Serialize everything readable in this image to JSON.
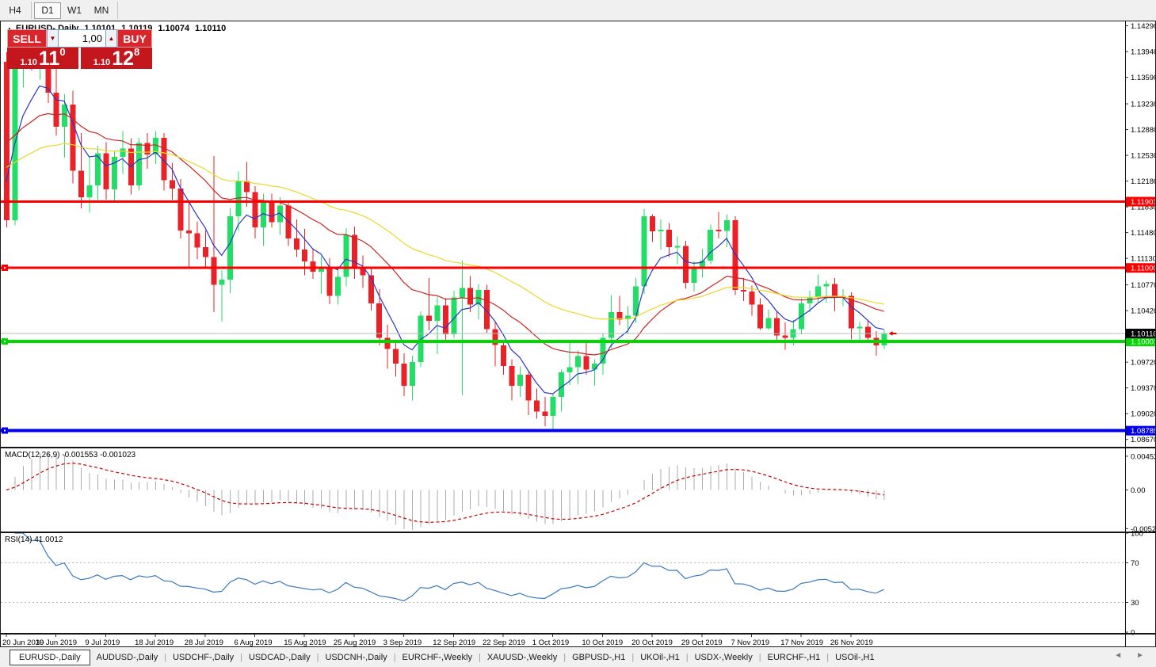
{
  "toolbar": {
    "timeframes": [
      "H4",
      "D1",
      "W1",
      "MN"
    ],
    "active": "D1"
  },
  "chart": {
    "collapse_icon": "▲",
    "title": "EURUSD-,Daily"
  },
  "trade_panel": {
    "sell_label": "SELL",
    "buy_label": "BUY",
    "volume": "1,00",
    "spinner_down": "▼",
    "spinner_up": "▲",
    "sell": {
      "prefix": "1.10",
      "main": "11",
      "sup": "0"
    },
    "buy": {
      "prefix": "1.10",
      "main": "12",
      "sup": "8"
    }
  },
  "tabbar": {
    "active": "EURUSD-,Daily",
    "items": [
      "EURUSD-,Daily",
      "AUDUSD-,Daily",
      "USDCHF-,Daily",
      "USDCAD-,Daily",
      "USDCNH-,Daily",
      "EURCHF-,Weekly",
      "XAUUSD-,Weekly",
      "GBPUSD-,H1",
      "UKOil-,H1",
      "USDX-,Weekly",
      "EURCHF-,H1",
      "USOil-,H1"
    ],
    "scroll_left": "◄",
    "scroll_right": "►"
  },
  "chart_data": {
    "type": "candlestick",
    "symbol": "EURUSD-",
    "period": "Daily",
    "ohlc_display": {
      "open": "1.10101",
      "high": "1.10119",
      "low": "1.10074",
      "close": "1.10110"
    },
    "price_min": 1.0857,
    "price_max": 1.1435,
    "colors": {
      "bull": "#22dd66",
      "bear": "#ea2126",
      "ma_fast": "#2a35c8",
      "ma_mid": "#cc2424",
      "ma_slow": "#ecd827",
      "macd_hist": "#ababab",
      "macd_signal": "#c40000",
      "rsi": "#3a78c0",
      "line_red": "#fd0000",
      "line_green": "#00d800",
      "line_blue": "#0000ee",
      "line_bid": "#b8b8b8"
    },
    "candles": [
      [
        1.138,
        1.1393,
        1.1155,
        1.1165
      ],
      [
        1.1165,
        1.1395,
        1.1158,
        1.1385
      ],
      [
        1.1385,
        1.1406,
        1.1345,
        1.1397
      ],
      [
        1.1397,
        1.1412,
        1.1368,
        1.1378
      ],
      [
        1.1378,
        1.1401,
        1.1356,
        1.1392
      ],
      [
        1.1392,
        1.1402,
        1.1324,
        1.1338
      ],
      [
        1.1338,
        1.1371,
        1.128,
        1.1292
      ],
      [
        1.1292,
        1.1336,
        1.125,
        1.1322
      ],
      [
        1.1322,
        1.1341,
        1.1215,
        1.1232
      ],
      [
        1.1232,
        1.1283,
        1.1181,
        1.1196
      ],
      [
        1.1196,
        1.1251,
        1.1175,
        1.1212
      ],
      [
        1.1212,
        1.1266,
        1.119,
        1.1256
      ],
      [
        1.1256,
        1.1271,
        1.1193,
        1.1207
      ],
      [
        1.1207,
        1.1259,
        1.1192,
        1.1251
      ],
      [
        1.1251,
        1.1286,
        1.1228,
        1.1262
      ],
      [
        1.1262,
        1.1276,
        1.12,
        1.1212
      ],
      [
        1.1212,
        1.1277,
        1.1205,
        1.127
      ],
      [
        1.127,
        1.1283,
        1.1235,
        1.1254
      ],
      [
        1.1254,
        1.1286,
        1.1241,
        1.1277
      ],
      [
        1.1277,
        1.1283,
        1.1205,
        1.1219
      ],
      [
        1.1219,
        1.1243,
        1.1193,
        1.1208
      ],
      [
        1.1208,
        1.1221,
        1.114,
        1.1151
      ],
      [
        1.1151,
        1.1189,
        1.1101,
        1.1147
      ],
      [
        1.1147,
        1.1163,
        1.1112,
        1.1128
      ],
      [
        1.1128,
        1.1151,
        1.1102,
        1.1115
      ],
      [
        1.1115,
        1.1252,
        1.104,
        1.1077
      ],
      [
        1.1077,
        1.1097,
        1.1027,
        1.1084
      ],
      [
        1.1084,
        1.1181,
        1.1066,
        1.117
      ],
      [
        1.117,
        1.1231,
        1.115,
        1.1218
      ],
      [
        1.1218,
        1.1244,
        1.1183,
        1.1203
      ],
      [
        1.1203,
        1.1211,
        1.114,
        1.1155
      ],
      [
        1.1155,
        1.1201,
        1.113,
        1.119
      ],
      [
        1.119,
        1.1201,
        1.1155,
        1.1162
      ],
      [
        1.1162,
        1.1196,
        1.1145,
        1.1185
      ],
      [
        1.1185,
        1.1191,
        1.113,
        1.114
      ],
      [
        1.114,
        1.1166,
        1.1115,
        1.1125
      ],
      [
        1.1125,
        1.1153,
        1.109,
        1.1109
      ],
      [
        1.1109,
        1.1126,
        1.1085,
        1.1095
      ],
      [
        1.1095,
        1.1116,
        1.1065,
        1.1102
      ],
      [
        1.1102,
        1.1113,
        1.1051,
        1.1062
      ],
      [
        1.1062,
        1.1099,
        1.105,
        1.1088
      ],
      [
        1.1088,
        1.1154,
        1.1075,
        1.1145
      ],
      [
        1.1145,
        1.1156,
        1.1085,
        1.11
      ],
      [
        1.11,
        1.1117,
        1.1073,
        1.109
      ],
      [
        1.109,
        1.1099,
        1.1042,
        1.1052
      ],
      [
        1.1052,
        1.1071,
        1.0995,
        1.1005
      ],
      [
        1.1005,
        1.1023,
        1.0963,
        1.099
      ],
      [
        1.099,
        1.1001,
        1.0952,
        1.097
      ],
      [
        1.097,
        1.0984,
        1.0926,
        1.094
      ],
      [
        1.094,
        1.0981,
        1.092,
        1.0972
      ],
      [
        1.0972,
        1.1041,
        1.0965,
        1.1035
      ],
      [
        1.1035,
        1.1086,
        1.1015,
        1.1028
      ],
      [
        1.1028,
        1.1061,
        1.0983,
        1.1049
      ],
      [
        1.1049,
        1.1059,
        1.1,
        1.101
      ],
      [
        1.101,
        1.1069,
        1.1005,
        1.106
      ],
      [
        1.106,
        1.111,
        1.0927,
        1.1073
      ],
      [
        1.1073,
        1.1089,
        1.104,
        1.105
      ],
      [
        1.105,
        1.1078,
        1.103,
        1.107
      ],
      [
        1.107,
        1.1077,
        1.1012,
        1.1017
      ],
      [
        1.1017,
        1.1026,
        1.0966,
        1.0995
      ],
      [
        1.0995,
        1.1001,
        1.0955,
        1.0967
      ],
      [
        1.0967,
        1.0976,
        1.092,
        1.094
      ],
      [
        1.094,
        1.0966,
        1.0925,
        1.0955
      ],
      [
        1.0955,
        1.0961,
        1.09,
        1.092
      ],
      [
        1.092,
        1.0936,
        1.0895,
        1.0905
      ],
      [
        1.0905,
        1.0925,
        1.0885,
        1.0899
      ],
      [
        1.0899,
        1.093,
        1.0879,
        1.0925
      ],
      [
        1.0925,
        1.0962,
        1.0905,
        1.0958
      ],
      [
        1.0958,
        1.0999,
        1.0941,
        1.0965
      ],
      [
        1.0965,
        1.0988,
        1.0942,
        1.098
      ],
      [
        1.098,
        1.1,
        1.0955,
        1.0962
      ],
      [
        1.0962,
        1.0976,
        1.094,
        1.097
      ],
      [
        1.097,
        1.1011,
        1.0955,
        1.1005
      ],
      [
        1.1005,
        1.1063,
        1.0991,
        1.104
      ],
      [
        1.104,
        1.1062,
        1.1022,
        1.103
      ],
      [
        1.103,
        1.1048,
        1.101,
        1.1035
      ],
      [
        1.1035,
        1.1086,
        1.1025,
        1.1075
      ],
      [
        1.1075,
        1.118,
        1.1065,
        1.117
      ],
      [
        1.117,
        1.1173,
        1.1135,
        1.115
      ],
      [
        1.115,
        1.1166,
        1.1125,
        1.1152
      ],
      [
        1.1152,
        1.1161,
        1.1115,
        1.1128
      ],
      [
        1.1128,
        1.1143,
        1.1105,
        1.113
      ],
      [
        1.113,
        1.1137,
        1.1072,
        1.108
      ],
      [
        1.108,
        1.1109,
        1.1068,
        1.11
      ],
      [
        1.11,
        1.1126,
        1.1087,
        1.111
      ],
      [
        1.111,
        1.1159,
        1.1105,
        1.1152
      ],
      [
        1.1152,
        1.1176,
        1.114,
        1.115
      ],
      [
        1.115,
        1.1173,
        1.1128,
        1.1165
      ],
      [
        1.1165,
        1.117,
        1.1063,
        1.107
      ],
      [
        1.107,
        1.1086,
        1.1055,
        1.1068
      ],
      [
        1.1068,
        1.1076,
        1.1035,
        1.105
      ],
      [
        1.105,
        1.1059,
        1.1016,
        1.1018
      ],
      [
        1.1018,
        1.1044,
        1.1016,
        1.1032
      ],
      [
        1.1032,
        1.1041,
        1.1002,
        1.1008
      ],
      [
        1.1008,
        1.1026,
        1.0989,
        1.1005
      ],
      [
        1.1005,
        1.1029,
        1.0995,
        1.1017
      ],
      [
        1.1017,
        1.1059,
        1.101,
        1.1052
      ],
      [
        1.1052,
        1.1069,
        1.104,
        1.106
      ],
      [
        1.106,
        1.1091,
        1.1052,
        1.1075
      ],
      [
        1.1075,
        1.1083,
        1.1053,
        1.1078
      ],
      [
        1.1078,
        1.1086,
        1.1041,
        1.106
      ],
      [
        1.106,
        1.1071,
        1.1048,
        1.1062
      ],
      [
        1.1062,
        1.1067,
        1.1003,
        1.1018
      ],
      [
        1.1018,
        1.1027,
        1.1,
        1.102
      ],
      [
        1.102,
        1.1029,
        1.0998,
        1.1005
      ],
      [
        1.1005,
        1.1014,
        1.0981,
        1.0995
      ],
      [
        1.0995,
        1.1016,
        1.099,
        1.1011
      ]
    ],
    "x_ticks": [
      {
        "label": "20 Jun 2019",
        "i": 0
      },
      {
        "label": "30 Jun 2019",
        "i": 6
      },
      {
        "label": "9 Jul 2019",
        "i": 12
      },
      {
        "label": "18 Jul 2019",
        "i": 18
      },
      {
        "label": "28 Jul 2019",
        "i": 24
      },
      {
        "label": "6 Aug 2019",
        "i": 30
      },
      {
        "label": "15 Aug 2019",
        "i": 36
      },
      {
        "label": "25 Aug 2019",
        "i": 42
      },
      {
        "label": "3 Sep 2019",
        "i": 48
      },
      {
        "label": "12 Sep 2019",
        "i": 54
      },
      {
        "label": "22 Sep 2019",
        "i": 60
      },
      {
        "label": "1 Oct 2019",
        "i": 66
      },
      {
        "label": "10 Oct 2019",
        "i": 72
      },
      {
        "label": "20 Oct 2019",
        "i": 78
      },
      {
        "label": "29 Oct 2019",
        "i": 84
      },
      {
        "label": "7 Nov 2019",
        "i": 90
      },
      {
        "label": "17 Nov 2019",
        "i": 96
      },
      {
        "label": "26 Nov 2019",
        "i": 102
      }
    ],
    "y_ticks": [
      "1.14290",
      "1.13940",
      "1.13590",
      "1.13230",
      "1.12880",
      "1.12530",
      "1.12180",
      "1.11830",
      "1.11480",
      "1.11130",
      "1.10770",
      "1.10420",
      "1.10070",
      "1.09720",
      "1.09370",
      "1.09020",
      "1.08670"
    ],
    "hlines": [
      {
        "price": 1.11901,
        "color": "#fd0000",
        "width": 3,
        "handle": false
      },
      {
        "price": 1.11,
        "color": "#fd0000",
        "width": 3,
        "handle": true
      },
      {
        "price": 1.1011,
        "color": "#b8b8b8",
        "width": 1,
        "handle": false
      },
      {
        "price": 1.10001,
        "color": "#00d800",
        "width": 4,
        "handle": true
      },
      {
        "price": 1.08789,
        "color": "#0000ee",
        "width": 4,
        "handle": true
      }
    ],
    "price_badges": [
      {
        "text": "1.11901",
        "bg": "#fd0000",
        "fg": "#ffffff",
        "price": 1.11901
      },
      {
        "text": "1.11000",
        "bg": "#fd0000",
        "fg": "#ffffff",
        "price": 1.11
      },
      {
        "text": "1.10001",
        "bg": "#00d800",
        "fg": "#ffffff",
        "price": 1.10001
      },
      {
        "text": "1.10110",
        "bg": "#000000",
        "fg": "#ffffff",
        "price": 1.1011
      },
      {
        "text": "1.08789",
        "bg": "#0000ee",
        "fg": "#ffffff",
        "price": 1.08789
      }
    ],
    "moving_averages": [
      {
        "name": "ma-fast",
        "color": "#2a35c8",
        "k": 0.3,
        "seed": 1.124
      },
      {
        "name": "ma-mid",
        "color": "#cc2424",
        "k": 0.09,
        "seed": 1.128
      },
      {
        "name": "ma-slow",
        "color": "#ecd827",
        "k": 0.045,
        "seed": 1.124
      }
    ],
    "macd": {
      "label": "MACD(12,26,9) -0.001553 -0.001023",
      "fast": 12,
      "slow": 26,
      "signal": 9,
      "value": -0.001553,
      "signal_value": -0.001023,
      "scale_ticks": [
        "0.004536",
        "0.00",
        "-0.00520"
      ]
    },
    "rsi": {
      "label": "RSI(14) 41.0012",
      "period": 14,
      "value": 41.0012,
      "levels": [
        70,
        30
      ],
      "scale_ticks": [
        100,
        70,
        30,
        0
      ]
    }
  }
}
